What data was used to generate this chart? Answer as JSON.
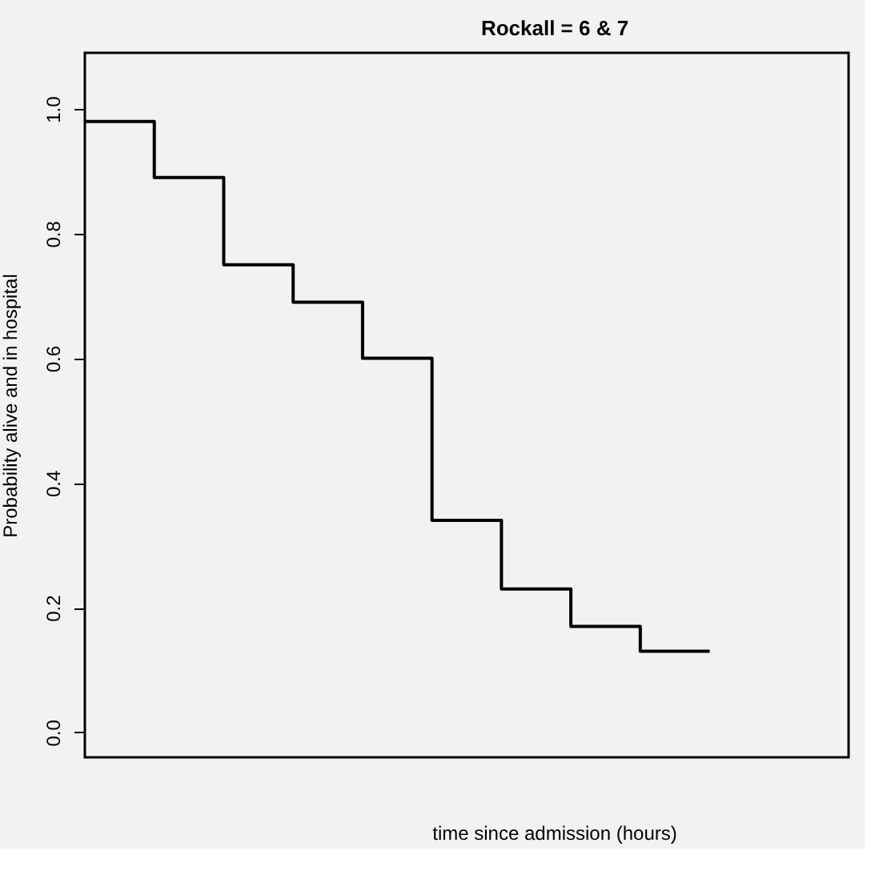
{
  "chart_data": {
    "type": "step",
    "title": "Rockall = 6 & 7",
    "xlabel": "time since admission (hours)",
    "ylabel": "Probability alive and in hospital",
    "categories": [
      null,
      null,
      null,
      null,
      null,
      null,
      null,
      null,
      null,
      null
    ],
    "series": [
      {
        "color": "#000000",
        "values": [
          0.98,
          0.89,
          0.75,
          0.69,
          0.6,
          0.34,
          0.23,
          0.17,
          0.13,
          0.13
        ]
      }
    ],
    "ylim": [
      -0.04,
      1.09
    ],
    "yticks": [
      {
        "value": 0,
        "label": "0.0"
      },
      0.2,
      0.4,
      0.6,
      0.8,
      {
        "value": 1,
        "label": "1.0"
      }
    ],
    "grid": false,
    "legend": false,
    "tick_labels": "y",
    "marker": "none",
    "line_style": "solid"
  }
}
